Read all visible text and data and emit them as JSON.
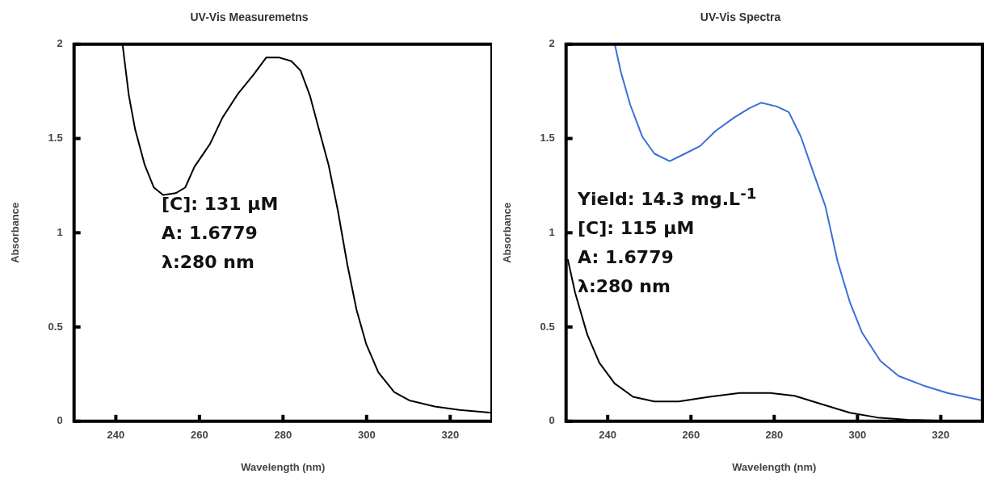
{
  "chart_data": [
    {
      "type": "line",
      "title": "UV-Vis Measuremetns",
      "xlabel": "Wavelength (nm)",
      "ylabel": "Absorbance",
      "xlim": [
        230,
        330
      ],
      "xticks": [
        240,
        260,
        280,
        300,
        320
      ],
      "ylim": [
        0,
        2
      ],
      "yticks": [
        0,
        0.5,
        1,
        1.5,
        2
      ],
      "grid": false,
      "legend": false,
      "series": [
        {
          "color": "#000000",
          "x": [
            241.6,
            243.1,
            244.6,
            246.9,
            249.1,
            251.3,
            254.3,
            256.6,
            258.8,
            262.5,
            265.5,
            269.3,
            273,
            276,
            279,
            282,
            284.2,
            286.4,
            288.7,
            290.9,
            293.1,
            295.4,
            297.6,
            299.9,
            302.8,
            306.6,
            310.3,
            316.3,
            322.2,
            330
          ],
          "values": [
            2.0,
            1.73,
            1.55,
            1.36,
            1.24,
            1.2,
            1.21,
            1.24,
            1.35,
            1.47,
            1.61,
            1.74,
            1.84,
            1.93,
            1.93,
            1.91,
            1.86,
            1.73,
            1.54,
            1.36,
            1.12,
            0.83,
            0.59,
            0.41,
            0.26,
            0.155,
            0.11,
            0.078,
            0.06,
            0.045
          ]
        }
      ],
      "annotations": [
        "[C]: 131 μM",
        "A: 1.6779",
        "λ:280 nm"
      ]
    },
    {
      "type": "line",
      "title": "UV-Vis Spectra",
      "xlabel": "Wavelength (nm)",
      "ylabel": "Absorbance",
      "xlim": [
        230,
        330
      ],
      "xticks": [
        240,
        260,
        280,
        300,
        320
      ],
      "ylim": [
        0,
        2
      ],
      "yticks": [
        0,
        0.5,
        1,
        1.5,
        2
      ],
      "grid": false,
      "legend": false,
      "series": [
        {
          "color": "#3a6fd8",
          "x": [
            241.7,
            243.2,
            245.4,
            248.3,
            251.2,
            254.9,
            258.6,
            262.2,
            265.9,
            270.3,
            274,
            276.9,
            280.6,
            283.5,
            286.4,
            289.4,
            292.3,
            295.2,
            298.2,
            301.1,
            305.5,
            309.9,
            315.8,
            321.6,
            330
          ],
          "values": [
            2.0,
            1.85,
            1.68,
            1.51,
            1.42,
            1.38,
            1.42,
            1.46,
            1.54,
            1.61,
            1.66,
            1.69,
            1.67,
            1.64,
            1.51,
            1.32,
            1.14,
            0.85,
            0.63,
            0.47,
            0.32,
            0.24,
            0.19,
            0.15,
            0.11
          ]
        },
        {
          "color": "#000000",
          "x": [
            230.4,
            232.2,
            235.1,
            238,
            241.7,
            246.1,
            251.2,
            257.1,
            264.4,
            271.7,
            279,
            284.9,
            291.5,
            298.2,
            304.8,
            312.1,
            319.5,
            330
          ],
          "values": [
            0.86,
            0.68,
            0.46,
            0.31,
            0.2,
            0.13,
            0.105,
            0.105,
            0.13,
            0.15,
            0.15,
            0.135,
            0.09,
            0.045,
            0.02,
            0.008,
            0.003,
            0
          ]
        }
      ],
      "annotations": [
        "Yield:  14.3 mg.L$^{-1}$",
        "[C]: 115 μM",
        "A: 1.6779",
        "λ:280 nm"
      ]
    }
  ]
}
